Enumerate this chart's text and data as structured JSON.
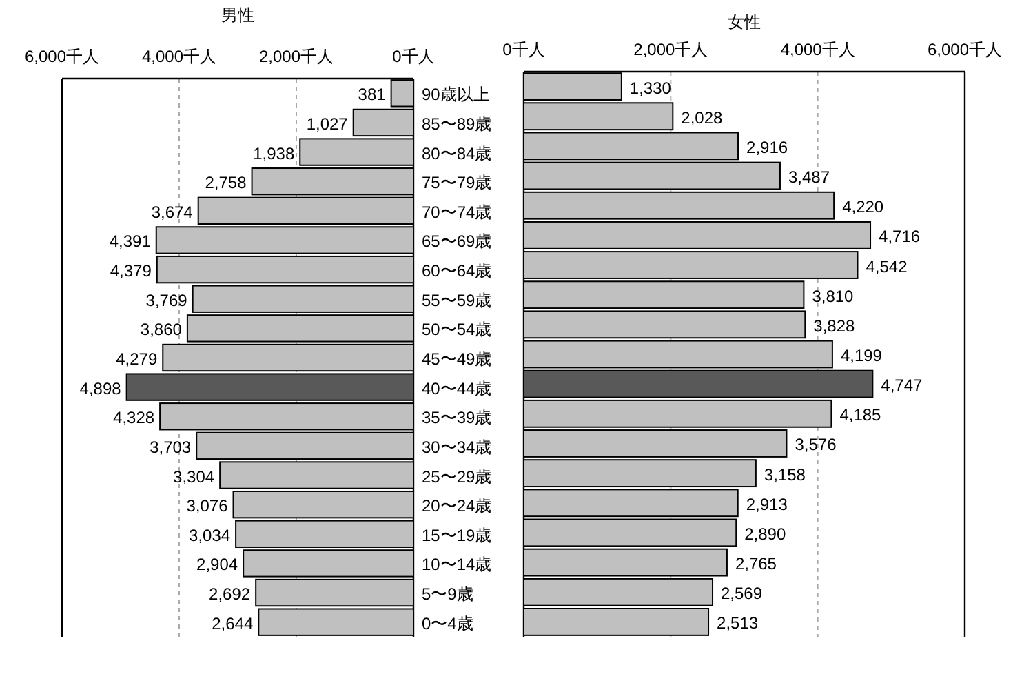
{
  "chart_data": [
    {
      "type": "bar",
      "orientation": "horizontal",
      "title": "男性",
      "categories": [
        "90歳以上",
        "85〜89歳",
        "80〜84歳",
        "75〜79歳",
        "70〜74歳",
        "65〜69歳",
        "60〜64歳",
        "55〜59歳",
        "50〜54歳",
        "45〜49歳",
        "40〜44歳",
        "35〜39歳",
        "30〜34歳",
        "25〜29歳",
        "20〜24歳",
        "15〜19歳",
        "10〜14歳",
        "5〜9歳",
        "0〜4歳"
      ],
      "values": [
        381,
        1027,
        1938,
        2758,
        3674,
        4391,
        4379,
        3769,
        3860,
        4279,
        4898,
        4328,
        3703,
        3304,
        3076,
        3034,
        2904,
        2692,
        2644
      ],
      "value_labels": [
        "381",
        "1,027",
        "1,938",
        "2,758",
        "3,674",
        "4,391",
        "4,379",
        "3,769",
        "3,860",
        "4,279",
        "4,898",
        "4,328",
        "3,703",
        "3,304",
        "3,076",
        "3,034",
        "2,904",
        "2,692",
        "2,644"
      ],
      "colors": [
        "#c0c0c0",
        "#c0c0c0",
        "#c0c0c0",
        "#c0c0c0",
        "#c0c0c0",
        "#c0c0c0",
        "#c0c0c0",
        "#c0c0c0",
        "#c0c0c0",
        "#c0c0c0",
        "#595959",
        "#c0c0c0",
        "#c0c0c0",
        "#c0c0c0",
        "#c0c0c0",
        "#c0c0c0",
        "#c0c0c0",
        "#c0c0c0",
        "#c0c0c0"
      ],
      "xlim": [
        6000,
        0
      ],
      "xticks": [
        {
          "value": 6000,
          "label": "6,000千人"
        },
        {
          "value": 4000,
          "label": "4,000千人"
        },
        {
          "value": 2000,
          "label": "2,000千人"
        },
        {
          "value": 0,
          "label": "0千人"
        }
      ],
      "grid": "x"
    },
    {
      "type": "bar",
      "orientation": "horizontal",
      "title": "女性",
      "values": [
        1330,
        2028,
        2916,
        3487,
        4220,
        4716,
        4542,
        3810,
        3828,
        4199,
        4747,
        4185,
        3576,
        3158,
        2913,
        2890,
        2765,
        2569,
        2513
      ],
      "value_labels": [
        "1,330",
        "2,028",
        "2,916",
        "3,487",
        "4,220",
        "4,716",
        "4,542",
        "3,810",
        "3,828",
        "4,199",
        "4,747",
        "4,185",
        "3,576",
        "3,158",
        "2,913",
        "2,890",
        "2,765",
        "2,569",
        "2,513"
      ],
      "colors": [
        "#c0c0c0",
        "#c0c0c0",
        "#c0c0c0",
        "#c0c0c0",
        "#c0c0c0",
        "#c0c0c0",
        "#c0c0c0",
        "#c0c0c0",
        "#c0c0c0",
        "#c0c0c0",
        "#595959",
        "#c0c0c0",
        "#c0c0c0",
        "#c0c0c0",
        "#c0c0c0",
        "#c0c0c0",
        "#c0c0c0",
        "#c0c0c0",
        "#c0c0c0"
      ],
      "xlim": [
        0,
        6000
      ],
      "xticks": [
        {
          "value": 0,
          "label": "0千人"
        },
        {
          "value": 2000,
          "label": "2,000千人"
        },
        {
          "value": 4000,
          "label": "4,000千人"
        },
        {
          "value": 6000,
          "label": "6,000千人"
        }
      ],
      "grid": "x"
    }
  ]
}
